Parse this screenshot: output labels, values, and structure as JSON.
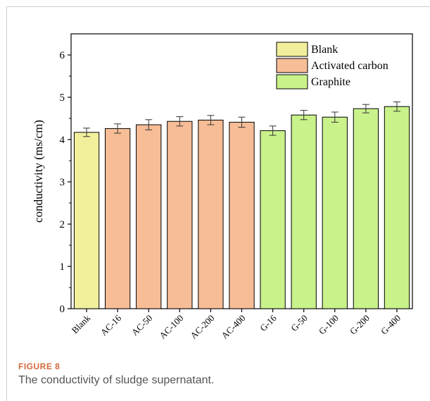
{
  "figure": {
    "label": "FIGURE 8",
    "caption": "The conductivity of sludge supernatant."
  },
  "chart_data": {
    "type": "bar",
    "title": "",
    "xlabel": "",
    "ylabel": "conductivity (ms/cm)",
    "ylim": [
      0,
      6.5
    ],
    "yticks": [
      0,
      1,
      2,
      3,
      4,
      5,
      6
    ],
    "grid": false,
    "legend_position": "top-right",
    "categories": [
      "Blank",
      "AC-16",
      "AC-50",
      "AC-100",
      "AC-200",
      "AC-400",
      "G-16",
      "G-50",
      "G-100",
      "G-200",
      "G-400"
    ],
    "values": [
      4.17,
      4.26,
      4.35,
      4.43,
      4.46,
      4.41,
      4.21,
      4.58,
      4.53,
      4.73,
      4.78
    ],
    "errors": [
      0.1,
      0.11,
      0.12,
      0.11,
      0.11,
      0.12,
      0.11,
      0.11,
      0.12,
      0.1,
      0.11
    ],
    "groups": [
      "Blank",
      "Activated carbon",
      "Activated carbon",
      "Activated carbon",
      "Activated carbon",
      "Activated carbon",
      "Graphite",
      "Graphite",
      "Graphite",
      "Graphite",
      "Graphite"
    ],
    "legend": [
      {
        "name": "Blank",
        "color": "#f2ef9c"
      },
      {
        "name": "Activated carbon",
        "color": "#f7bd96"
      },
      {
        "name": "Graphite",
        "color": "#c9f28a"
      }
    ]
  }
}
